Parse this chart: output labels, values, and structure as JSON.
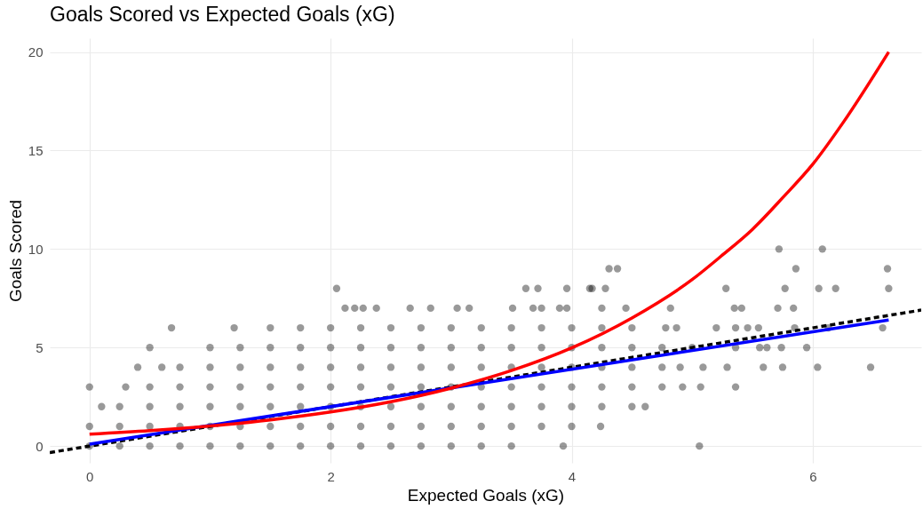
{
  "chart_data": {
    "type": "scatter",
    "title": "Goals Scored vs Expected Goals (xG)",
    "xlabel": "Expected Goals (xG)",
    "ylabel": "Goals Scored",
    "xlim": [
      -0.33,
      6.9
    ],
    "ylim": [
      -0.85,
      20.7
    ],
    "xticks": [
      0,
      2,
      4,
      6
    ],
    "yticks": [
      0,
      5,
      10,
      15,
      20
    ],
    "grid": true,
    "series": [
      {
        "marker": "circle",
        "color": "#000000",
        "x": [
          0,
          0.25,
          0.5,
          0.75,
          1,
          1.25,
          1.5,
          1.75,
          2,
          2.25,
          2.5,
          2.75,
          3,
          3.25,
          3.5,
          3.93,
          5.06,
          0,
          0.25,
          0.5,
          0.75,
          1,
          1.25,
          1.5,
          1.75,
          2,
          2.25,
          2.5,
          2.75,
          3,
          3.25,
          3.5,
          3.75,
          4,
          4.24,
          0.1,
          0.25,
          0.5,
          0.75,
          1,
          1.25,
          1.5,
          1.75,
          2,
          2.25,
          2.5,
          2.75,
          3,
          3.25,
          3.5,
          3.75,
          4,
          4.25,
          4.5,
          4.61,
          0,
          0.3,
          0.5,
          0.75,
          1,
          1.25,
          1.5,
          1.75,
          2,
          2.25,
          2.5,
          2.75,
          3,
          3.25,
          3.5,
          3.75,
          4,
          4.25,
          4.5,
          4.75,
          4.92,
          5.07,
          5.36,
          0.4,
          0.6,
          0.75,
          1,
          1.25,
          1.5,
          1.75,
          2,
          2.25,
          2.5,
          2.75,
          3,
          3.25,
          3.5,
          3.75,
          4,
          4.25,
          4.5,
          4.75,
          4.9,
          5.09,
          5.29,
          5.59,
          5.75,
          6.04,
          6.48,
          0.5,
          1,
          1.25,
          1.5,
          1.75,
          2,
          2.25,
          2.5,
          2.75,
          3,
          3.25,
          3.5,
          3.75,
          4,
          4.25,
          4.5,
          4.75,
          5,
          5.36,
          5.56,
          5.62,
          5.74,
          5.95,
          0.68,
          1.2,
          1.5,
          1.75,
          2,
          2.25,
          2.5,
          2.75,
          3,
          3.25,
          3.5,
          3.75,
          4,
          4.25,
          4.5,
          4.78,
          4.87,
          5.2,
          5.36,
          5.46,
          5.55,
          5.85,
          6.13,
          6.58,
          2.12,
          2.2,
          2.27,
          2.38,
          2.66,
          2.83,
          3.05,
          3.15,
          3.51,
          3.68,
          3.75,
          3.9,
          3.96,
          4.25,
          4.45,
          4.82,
          5.35,
          5.41,
          5.71,
          5.84,
          2.05,
          3.62,
          3.72,
          3.96,
          4.15,
          4.17,
          4.28,
          5.28,
          5.77,
          6.05,
          6.19,
          6.63,
          4.31,
          4.38,
          5.86,
          6.62,
          5.72,
          6.08
        ],
        "values": [
          0,
          0,
          0,
          0,
          0,
          0,
          0,
          0,
          0,
          0,
          0,
          0,
          0,
          0,
          0,
          0,
          0,
          1,
          1,
          1,
          1,
          1,
          1,
          1,
          1,
          1,
          1,
          1,
          1,
          1,
          1,
          1,
          1,
          1,
          1,
          2,
          2,
          2,
          2,
          2,
          2,
          2,
          2,
          2,
          2,
          2,
          2,
          2,
          2,
          2,
          2,
          2,
          2,
          2,
          2,
          3,
          3,
          3,
          3,
          3,
          3,
          3,
          3,
          3,
          3,
          3,
          3,
          3,
          3,
          3,
          3,
          3,
          3,
          3,
          3,
          3,
          3,
          3,
          4,
          4,
          4,
          4,
          4,
          4,
          4,
          4,
          4,
          4,
          4,
          4,
          4,
          4,
          4,
          4,
          4,
          4,
          4,
          4,
          4,
          4,
          4,
          4,
          4,
          4,
          5,
          5,
          5,
          5,
          5,
          5,
          5,
          5,
          5,
          5,
          5,
          5,
          5,
          5,
          5,
          5,
          5,
          5,
          5,
          5,
          5,
          5,
          5,
          6,
          6,
          6,
          6,
          6,
          6,
          6,
          6,
          6,
          6,
          6,
          6,
          6,
          6,
          6,
          6,
          6,
          6,
          6,
          6,
          6,
          6,
          6,
          6,
          7,
          7,
          7,
          7,
          7,
          7,
          7,
          7,
          7,
          7,
          7,
          7,
          7,
          7,
          7,
          7,
          7,
          7,
          7,
          7,
          8,
          8,
          8,
          8,
          8,
          8,
          8,
          8,
          8,
          8,
          8,
          8,
          9,
          9,
          9,
          9,
          10,
          10
        ]
      },
      {
        "type": "line",
        "color": "#000000",
        "line_style": "dashed",
        "x": [
          -0.33,
          6.9
        ],
        "values": [
          -0.33,
          6.9
        ]
      },
      {
        "type": "line",
        "color": "#0000ff",
        "line_style": "solid",
        "x": [
          0,
          6.63
        ],
        "values": [
          0.1,
          6.4
        ]
      },
      {
        "type": "line",
        "color": "#ff0000",
        "line_style": "solid",
        "x": [
          0,
          0.5,
          1,
          1.5,
          2,
          2.5,
          3,
          3.5,
          4,
          4.5,
          5,
          5.25,
          5.5,
          5.75,
          6,
          6.25,
          6.63
        ],
        "values": [
          0.6,
          0.78,
          1.02,
          1.33,
          1.73,
          2.25,
          2.94,
          3.83,
          4.98,
          6.5,
          8.45,
          9.69,
          11,
          12.6,
          14.3,
          16.4,
          20
        ]
      }
    ]
  }
}
